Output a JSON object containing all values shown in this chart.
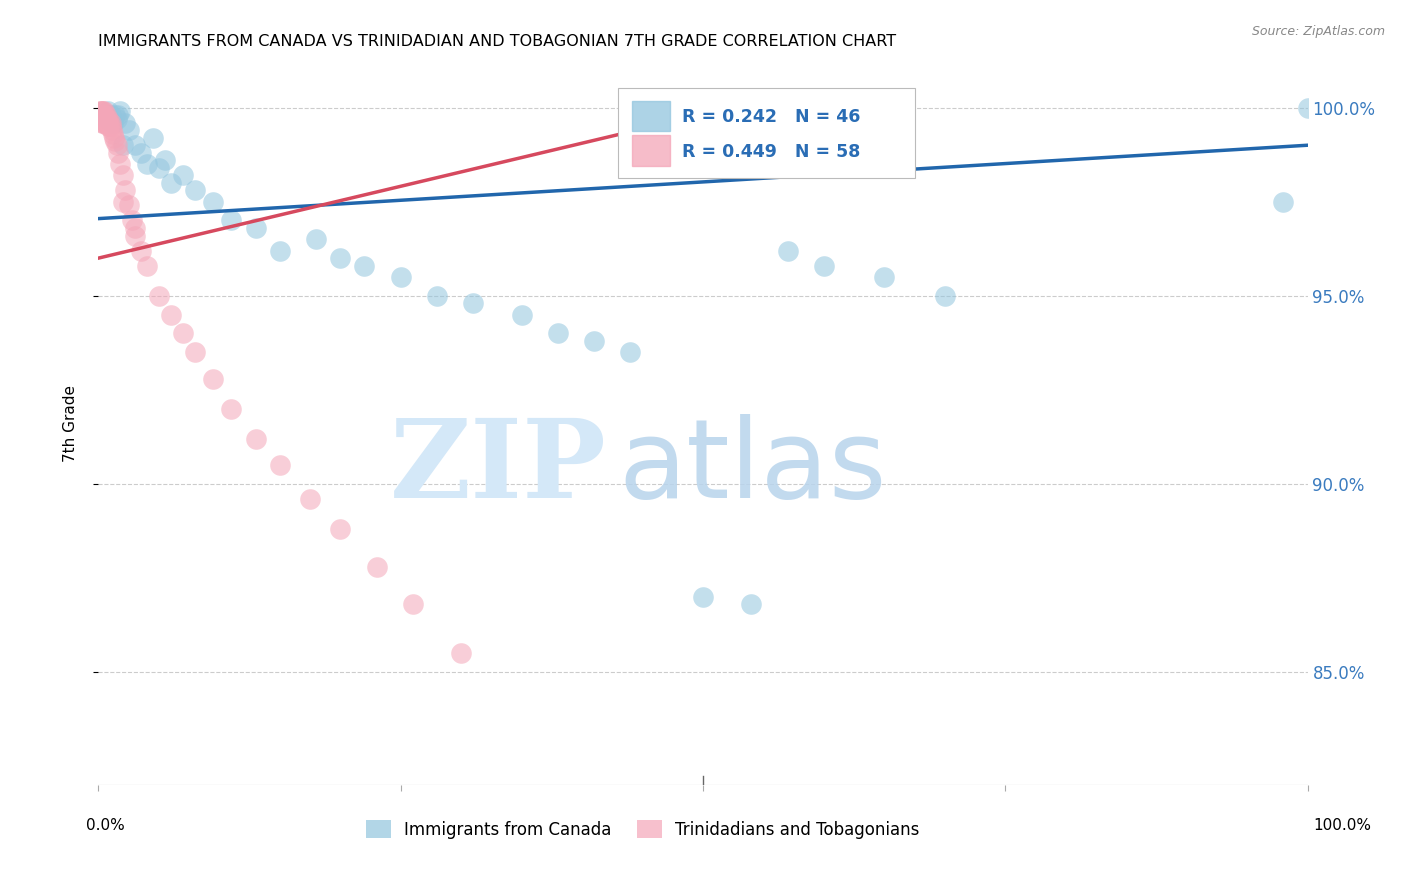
{
  "title": "IMMIGRANTS FROM CANADA VS TRINIDADIAN AND TOBAGONIAN 7TH GRADE CORRELATION CHART",
  "source": "Source: ZipAtlas.com",
  "ylabel": "7th Grade",
  "ytick_labels": [
    "100.0%",
    "95.0%",
    "90.0%",
    "85.0%"
  ],
  "ytick_values": [
    1.0,
    0.95,
    0.9,
    0.85
  ],
  "legend_label_blue": "Immigrants from Canada",
  "legend_label_pink": "Trinidadians and Tobagonians",
  "blue_color": "#92c5de",
  "pink_color": "#f4a6b8",
  "blue_line_color": "#2166ac",
  "pink_line_color": "#d6495e",
  "blue_R": 0.242,
  "blue_N": 46,
  "pink_R": 0.449,
  "pink_N": 58,
  "xlim": [
    0.0,
    1.0
  ],
  "ylim": [
    0.82,
    1.012
  ],
  "blue_line_x0": 0.0,
  "blue_line_y0": 0.9705,
  "blue_line_x1": 1.0,
  "blue_line_y1": 0.99,
  "pink_line_x0": 0.0,
  "pink_line_y0": 0.96,
  "pink_line_x1": 0.55,
  "pink_line_y1": 1.002,
  "blue_pts_x": [
    0.004,
    0.006,
    0.007,
    0.008,
    0.009,
    0.01,
    0.01,
    0.012,
    0.014,
    0.015,
    0.016,
    0.018,
    0.02,
    0.022,
    0.025,
    0.03,
    0.035,
    0.04,
    0.045,
    0.05,
    0.055,
    0.06,
    0.07,
    0.08,
    0.095,
    0.11,
    0.13,
    0.15,
    0.18,
    0.2,
    0.22,
    0.25,
    0.28,
    0.31,
    0.35,
    0.38,
    0.41,
    0.44,
    0.5,
    0.54,
    0.57,
    0.6,
    0.65,
    0.7,
    0.98,
    1.0
  ],
  "blue_pts_y": [
    0.998,
    0.998,
    0.997,
    0.999,
    0.998,
    0.997,
    0.998,
    0.996,
    0.998,
    0.997,
    0.998,
    0.999,
    0.99,
    0.996,
    0.994,
    0.99,
    0.988,
    0.985,
    0.992,
    0.984,
    0.986,
    0.98,
    0.982,
    0.978,
    0.975,
    0.97,
    0.968,
    0.962,
    0.965,
    0.96,
    0.958,
    0.955,
    0.95,
    0.948,
    0.945,
    0.94,
    0.938,
    0.935,
    0.87,
    0.868,
    0.962,
    0.958,
    0.955,
    0.95,
    0.975,
    1.0
  ],
  "pink_pts_x": [
    0.001,
    0.001,
    0.002,
    0.002,
    0.002,
    0.003,
    0.003,
    0.003,
    0.003,
    0.004,
    0.004,
    0.004,
    0.004,
    0.005,
    0.005,
    0.005,
    0.005,
    0.006,
    0.006,
    0.006,
    0.007,
    0.007,
    0.008,
    0.008,
    0.008,
    0.009,
    0.009,
    0.01,
    0.01,
    0.011,
    0.012,
    0.013,
    0.014,
    0.015,
    0.016,
    0.018,
    0.02,
    0.022,
    0.025,
    0.028,
    0.03,
    0.035,
    0.04,
    0.05,
    0.06,
    0.07,
    0.08,
    0.095,
    0.11,
    0.13,
    0.15,
    0.175,
    0.2,
    0.23,
    0.26,
    0.3,
    0.02,
    0.03
  ],
  "pink_pts_y": [
    0.999,
    0.998,
    0.999,
    0.998,
    0.997,
    0.999,
    0.998,
    0.997,
    0.996,
    0.999,
    0.998,
    0.997,
    0.996,
    0.999,
    0.998,
    0.997,
    0.996,
    0.998,
    0.997,
    0.996,
    0.997,
    0.996,
    0.997,
    0.996,
    0.995,
    0.996,
    0.995,
    0.996,
    0.995,
    0.994,
    0.993,
    0.992,
    0.991,
    0.99,
    0.988,
    0.985,
    0.982,
    0.978,
    0.974,
    0.97,
    0.966,
    0.962,
    0.958,
    0.95,
    0.945,
    0.94,
    0.935,
    0.928,
    0.92,
    0.912,
    0.905,
    0.896,
    0.888,
    0.878,
    0.868,
    0.855,
    0.975,
    0.968
  ]
}
